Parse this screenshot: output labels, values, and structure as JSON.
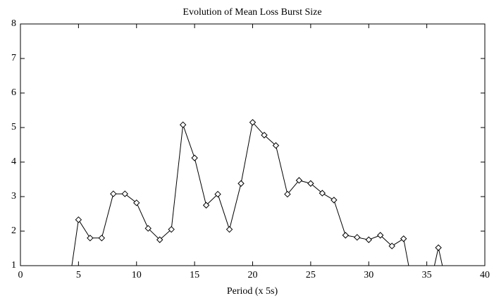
{
  "chart_data": {
    "type": "line",
    "title": "Evolution of Mean Loss Burst Size",
    "x_label": "Period (x 5s)",
    "series": [
      {
        "color": "#000000",
        "x": [
          4,
          5,
          6,
          7,
          8,
          9,
          10,
          11,
          12,
          13,
          14,
          15,
          16,
          17,
          18,
          19,
          20,
          21,
          22,
          23,
          24,
          25,
          26,
          27,
          28,
          29,
          30,
          31,
          32,
          33,
          34,
          35,
          36,
          37
        ],
        "values": [
          0,
          2.33,
          1.8,
          1.8,
          3.08,
          3.08,
          2.82,
          2.08,
          1.75,
          2.05,
          5.08,
          4.12,
          2.75,
          3.07,
          2.05,
          3.38,
          5.15,
          4.78,
          4.48,
          3.07,
          3.47,
          3.38,
          3.1,
          2.9,
          1.88,
          1.82,
          1.75,
          1.88,
          1.57,
          1.78,
          0,
          0,
          1.52,
          0
        ]
      }
    ],
    "xlim": [
      0,
      40
    ],
    "xticks": [
      0,
      5,
      10,
      15,
      20,
      25,
      30,
      35,
      40
    ],
    "ylim": [
      1,
      8
    ],
    "yticks": [
      1,
      2,
      3,
      4,
      5,
      6,
      7,
      8
    ]
  }
}
